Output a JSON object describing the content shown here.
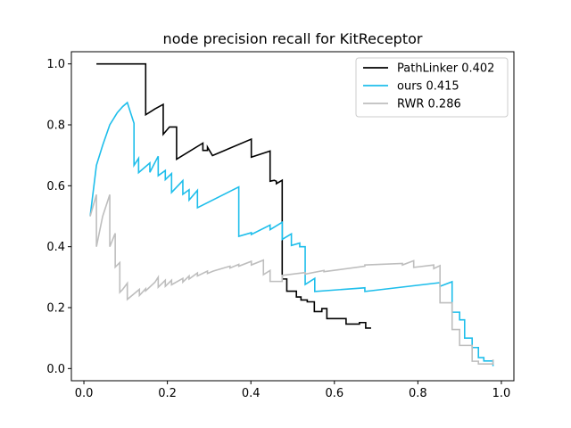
{
  "chart_data": {
    "type": "line",
    "title": "node precision recall for KitReceptor",
    "xlabel": "",
    "ylabel": "",
    "xlim": [
      -0.03,
      1.03
    ],
    "ylim": [
      -0.04,
      1.04
    ],
    "xticks": [
      0.0,
      0.2,
      0.4,
      0.6,
      0.8,
      1.0
    ],
    "yticks": [
      0.0,
      0.2,
      0.4,
      0.6,
      0.8,
      1.0
    ],
    "xtick_labels": [
      "0.0",
      "0.2",
      "0.4",
      "0.6",
      "0.8",
      "1.0"
    ],
    "ytick_labels": [
      "0.0",
      "0.2",
      "0.4",
      "0.6",
      "0.8",
      "1.0"
    ],
    "grid": false,
    "legend_position": "top-right",
    "series": [
      {
        "name": "PathLinker 0.402",
        "color": "#000000",
        "x": [
          0.03,
          0.148,
          0.148,
          0.17,
          0.19,
          0.19,
          0.205,
          0.222,
          0.222,
          0.285,
          0.285,
          0.296,
          0.296,
          0.308,
          0.401,
          0.401,
          0.446,
          0.446,
          0.456,
          0.461,
          0.461,
          0.475,
          0.475,
          0.486,
          0.486,
          0.509,
          0.509,
          0.52,
          0.52,
          0.535,
          0.535,
          0.552,
          0.552,
          0.57,
          0.57,
          0.582,
          0.582,
          0.628,
          0.628,
          0.66,
          0.66,
          0.675,
          0.675,
          0.688
        ],
        "y": [
          1.0,
          1.0,
          0.833,
          0.852,
          0.867,
          0.769,
          0.793,
          0.793,
          0.687,
          0.74,
          0.716,
          0.716,
          0.727,
          0.699,
          0.753,
          0.694,
          0.714,
          0.615,
          0.618,
          0.615,
          0.607,
          0.618,
          0.294,
          0.294,
          0.254,
          0.254,
          0.235,
          0.235,
          0.225,
          0.225,
          0.219,
          0.219,
          0.187,
          0.187,
          0.197,
          0.197,
          0.164,
          0.164,
          0.146,
          0.146,
          0.151,
          0.151,
          0.133,
          0.133
        ]
      },
      {
        "name": "ours 0.415",
        "color": "#1ebeeb",
        "x": [
          0.015,
          0.03,
          0.045,
          0.062,
          0.08,
          0.093,
          0.104,
          0.12,
          0.12,
          0.131,
          0.131,
          0.158,
          0.158,
          0.178,
          0.178,
          0.195,
          0.195,
          0.21,
          0.21,
          0.237,
          0.237,
          0.252,
          0.252,
          0.272,
          0.272,
          0.371,
          0.371,
          0.401,
          0.401,
          0.446,
          0.446,
          0.475,
          0.475,
          0.497,
          0.497,
          0.517,
          0.517,
          0.53,
          0.53,
          0.553,
          0.553,
          0.673,
          0.673,
          0.853,
          0.853,
          0.882,
          0.882,
          0.9,
          0.9,
          0.912,
          0.912,
          0.93,
          0.93,
          0.945,
          0.945,
          0.958,
          0.958,
          0.98,
          0.98
        ],
        "y": [
          0.5,
          0.667,
          0.733,
          0.8,
          0.84,
          0.86,
          0.873,
          0.805,
          0.667,
          0.69,
          0.643,
          0.675,
          0.644,
          0.697,
          0.633,
          0.65,
          0.62,
          0.64,
          0.578,
          0.617,
          0.572,
          0.587,
          0.553,
          0.585,
          0.528,
          0.596,
          0.434,
          0.446,
          0.44,
          0.471,
          0.456,
          0.48,
          0.424,
          0.442,
          0.404,
          0.412,
          0.4,
          0.4,
          0.276,
          0.296,
          0.253,
          0.265,
          0.253,
          0.282,
          0.27,
          0.285,
          0.185,
          0.185,
          0.16,
          0.16,
          0.1,
          0.1,
          0.069,
          0.069,
          0.036,
          0.036,
          0.025,
          0.025,
          0.008
        ]
      },
      {
        "name": "RWR 0.286",
        "color": "#bebebe",
        "x": [
          0.015,
          0.03,
          0.03,
          0.045,
          0.062,
          0.062,
          0.075,
          0.075,
          0.086,
          0.086,
          0.093,
          0.104,
          0.104,
          0.133,
          0.133,
          0.148,
          0.148,
          0.17,
          0.178,
          0.178,
          0.195,
          0.195,
          0.21,
          0.21,
          0.237,
          0.237,
          0.252,
          0.252,
          0.272,
          0.272,
          0.296,
          0.296,
          0.31,
          0.35,
          0.35,
          0.371,
          0.371,
          0.401,
          0.401,
          0.43,
          0.43,
          0.446,
          0.446,
          0.475,
          0.475,
          0.53,
          0.53,
          0.575,
          0.575,
          0.673,
          0.673,
          0.763,
          0.763,
          0.79,
          0.79,
          0.838,
          0.838,
          0.853,
          0.853,
          0.882,
          0.882,
          0.9,
          0.9,
          0.93,
          0.93,
          0.945,
          0.945,
          0.98,
          0.98
        ],
        "y": [
          0.5,
          0.571,
          0.4,
          0.5,
          0.571,
          0.4,
          0.444,
          0.333,
          0.348,
          0.25,
          0.26,
          0.28,
          0.227,
          0.26,
          0.24,
          0.262,
          0.255,
          0.283,
          0.3,
          0.267,
          0.29,
          0.27,
          0.29,
          0.275,
          0.296,
          0.284,
          0.304,
          0.294,
          0.314,
          0.304,
          0.32,
          0.312,
          0.32,
          0.336,
          0.33,
          0.342,
          0.336,
          0.352,
          0.34,
          0.356,
          0.308,
          0.322,
          0.286,
          0.286,
          0.306,
          0.315,
          0.31,
          0.322,
          0.318,
          0.336,
          0.34,
          0.345,
          0.34,
          0.354,
          0.332,
          0.34,
          0.328,
          0.338,
          0.216,
          0.216,
          0.128,
          0.128,
          0.076,
          0.076,
          0.024,
          0.024,
          0.015,
          0.015,
          0.03
        ]
      }
    ]
  }
}
